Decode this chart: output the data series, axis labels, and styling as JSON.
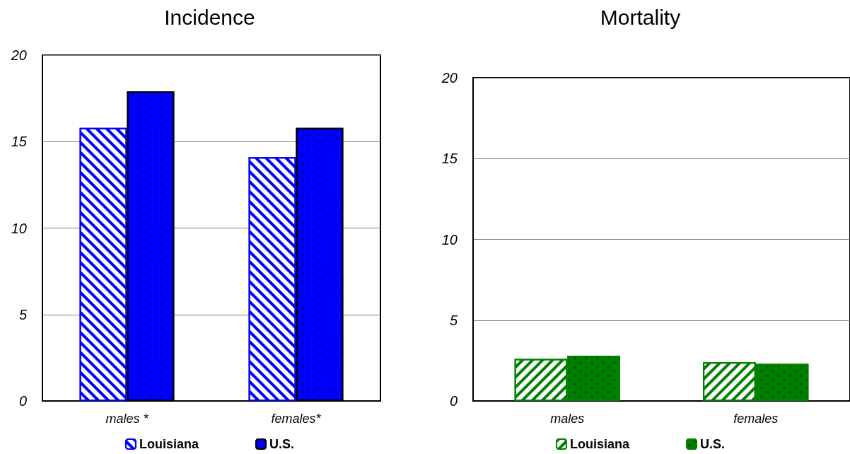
{
  "chart_data": [
    {
      "type": "bar",
      "title": "Incidence",
      "categories": [
        "males *",
        "females*"
      ],
      "series": [
        {
          "name": "Louisiana",
          "color": "#0000ff",
          "values": [
            15.8,
            14.1
          ]
        },
        {
          "name": "U.S.",
          "color": "#0000ff",
          "values": [
            17.9,
            15.8
          ]
        }
      ],
      "ylim": [
        0,
        20
      ],
      "yticks": [
        0,
        5,
        10,
        15,
        20
      ],
      "grid": "y",
      "legend": "bottom"
    },
    {
      "type": "bar",
      "title": "Mortality",
      "categories": [
        "males",
        "females"
      ],
      "series": [
        {
          "name": "Louisiana",
          "color": "#008000",
          "values": [
            2.6,
            2.4
          ]
        },
        {
          "name": "U.S.",
          "color": "#008000",
          "values": [
            2.8,
            2.3
          ]
        }
      ],
      "ylim": [
        0,
        20
      ],
      "yticks": [
        0,
        5,
        10,
        15,
        20
      ],
      "grid": "y",
      "legend": "bottom"
    }
  ]
}
